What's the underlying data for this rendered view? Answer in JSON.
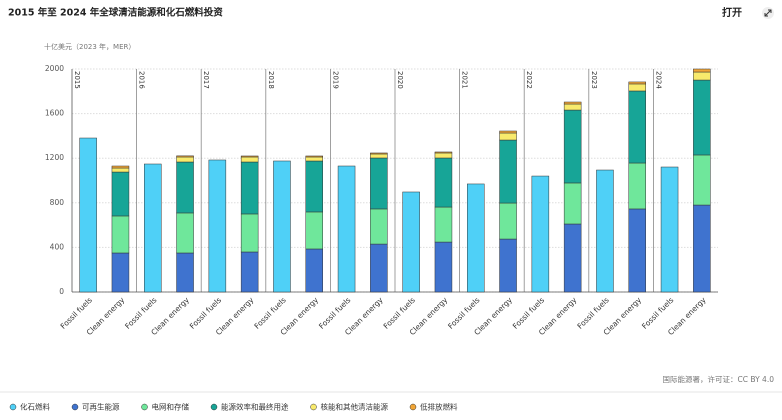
{
  "header": {
    "title": "2015 年至 2024 年全球清洁能源和化石燃料投资",
    "action": "打开"
  },
  "chart_data": {
    "type": "bar",
    "stacked": true,
    "y_label": "十亿美元（2023 年，MER）",
    "groups": [
      "2015",
      "2016",
      "2017",
      "2018",
      "2019",
      "2020",
      "2021",
      "2022",
      "2023",
      "2024"
    ],
    "categories": [
      "Fossil fuels",
      "Clean energy",
      "Fossil fuels",
      "Clean energy",
      "Fossil fuels",
      "Clean energy",
      "Fossil fuels",
      "Clean energy",
      "Fossil fuels",
      "Clean energy",
      "Fossil fuels",
      "Clean energy",
      "Fossil fuels",
      "Clean energy",
      "Fossil fuels",
      "Clean energy",
      "Fossil fuels",
      "Clean energy",
      "Fossil fuels",
      "Clean energy"
    ],
    "series": [
      {
        "name": "化石燃料",
        "color": "#4fd0f7",
        "values": [
          1381,
          null,
          1148,
          null,
          1184,
          null,
          1175,
          null,
          1130,
          null,
          897,
          null,
          969,
          null,
          1040,
          null,
          1094,
          null,
          1121,
          null
        ]
      },
      {
        "name": "可再生能源",
        "color": "#3f73cf",
        "values": [
          null,
          350,
          null,
          350,
          null,
          359,
          null,
          386,
          null,
          430,
          null,
          448,
          null,
          475,
          null,
          610,
          null,
          745,
          null,
          780
        ]
      },
      {
        "name": "电网和存储",
        "color": "#6fe79b",
        "values": [
          null,
          332,
          null,
          359,
          null,
          341,
          null,
          332,
          null,
          315,
          null,
          314,
          null,
          323,
          null,
          368,
          null,
          412,
          null,
          449
        ]
      },
      {
        "name": "能源效率和最终用途",
        "color": "#17a597",
        "values": [
          null,
          394,
          null,
          457,
          null,
          466,
          null,
          457,
          null,
          457,
          null,
          440,
          null,
          565,
          null,
          654,
          null,
          646,
          null,
          672
        ]
      },
      {
        "name": "核能和其他清洁能源",
        "color": "#f8ea6c",
        "values": [
          null,
          36,
          null,
          45,
          null,
          45,
          null,
          36,
          null,
          36,
          null,
          45,
          null,
          63,
          null,
          54,
          null,
          63,
          null,
          72
        ]
      },
      {
        "name": "低排放燃料",
        "color": "#f1a536",
        "values": [
          null,
          18,
          null,
          10,
          null,
          9,
          null,
          9,
          null,
          9,
          null,
          9,
          null,
          18,
          null,
          18,
          null,
          18,
          null,
          27
        ]
      }
    ],
    "ylim": [
      0,
      2000
    ],
    "yticks": [
      0,
      400,
      800,
      1200,
      1600,
      2000
    ],
    "grid": true,
    "source": "国际能源署，许可证：CC BY 4.0"
  }
}
